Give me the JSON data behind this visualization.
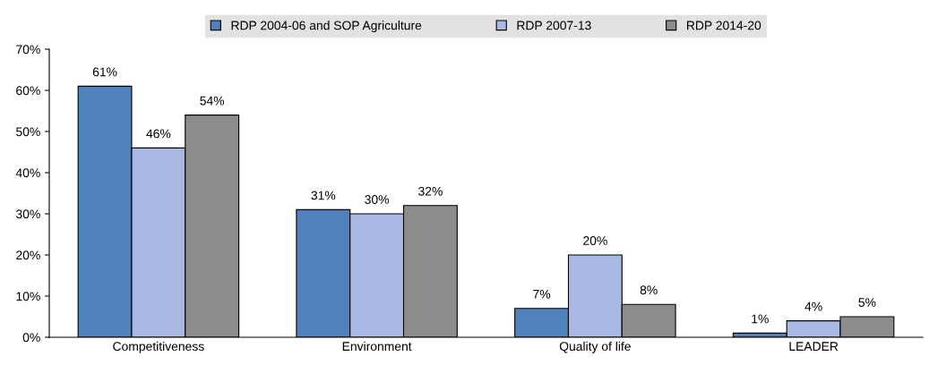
{
  "chart_data": {
    "type": "bar",
    "categories": [
      "Competitiveness",
      "Environment",
      "Quality of life",
      "LEADER"
    ],
    "series": [
      {
        "name": "RDP 2004-06 and SOP Agriculture",
        "color": "#4f81bd",
        "values": [
          61,
          31,
          7,
          1
        ],
        "value_labels": [
          "61%",
          "31%",
          "7%",
          "1%"
        ]
      },
      {
        "name": "RDP 2007-13",
        "color": "#a9b9e3",
        "values": [
          46,
          30,
          20,
          4
        ],
        "value_labels": [
          "46%",
          "30%",
          "20%",
          "4%"
        ]
      },
      {
        "name": "RDP 2014-20",
        "color": "#8c8c8c",
        "values": [
          54,
          32,
          8,
          5
        ],
        "value_labels": [
          "54%",
          "32%",
          "8%",
          "5%"
        ]
      }
    ],
    "ylim": [
      0,
      70
    ],
    "yticks": [
      {
        "value": 0,
        "label": "0%"
      },
      {
        "value": 10,
        "label": "10%"
      },
      {
        "value": 20,
        "label": "20%"
      },
      {
        "value": 30,
        "label": "30%"
      },
      {
        "value": 40,
        "label": "40%"
      },
      {
        "value": 50,
        "label": "50%"
      },
      {
        "value": 60,
        "label": "60%"
      },
      {
        "value": 70,
        "label": "70%"
      }
    ],
    "grid": false,
    "legend": "top"
  }
}
